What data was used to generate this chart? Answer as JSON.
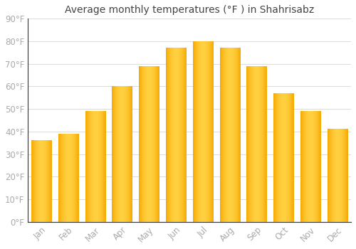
{
  "title": "Average monthly temperatures (°F ) in Shahrisabz",
  "months": [
    "Jan",
    "Feb",
    "Mar",
    "Apr",
    "May",
    "Jun",
    "Jul",
    "Aug",
    "Sep",
    "Oct",
    "Nov",
    "Dec"
  ],
  "values": [
    36,
    39,
    49,
    60,
    69,
    77,
    80,
    77,
    69,
    57,
    49,
    41
  ],
  "bar_color_left": "#F5A800",
  "bar_color_center": "#FFD040",
  "bar_color_right": "#F5A800",
  "ylim": [
    0,
    90
  ],
  "yticks": [
    0,
    10,
    20,
    30,
    40,
    50,
    60,
    70,
    80,
    90
  ],
  "ytick_labels": [
    "0°F",
    "10°F",
    "20°F",
    "30°F",
    "40°F",
    "50°F",
    "60°F",
    "70°F",
    "80°F",
    "90°F"
  ],
  "background_color": "#ffffff",
  "grid_color": "#dddddd",
  "title_fontsize": 10,
  "tick_fontsize": 8.5,
  "title_color": "#444444",
  "tick_color": "#aaaaaa",
  "bar_width": 0.75
}
